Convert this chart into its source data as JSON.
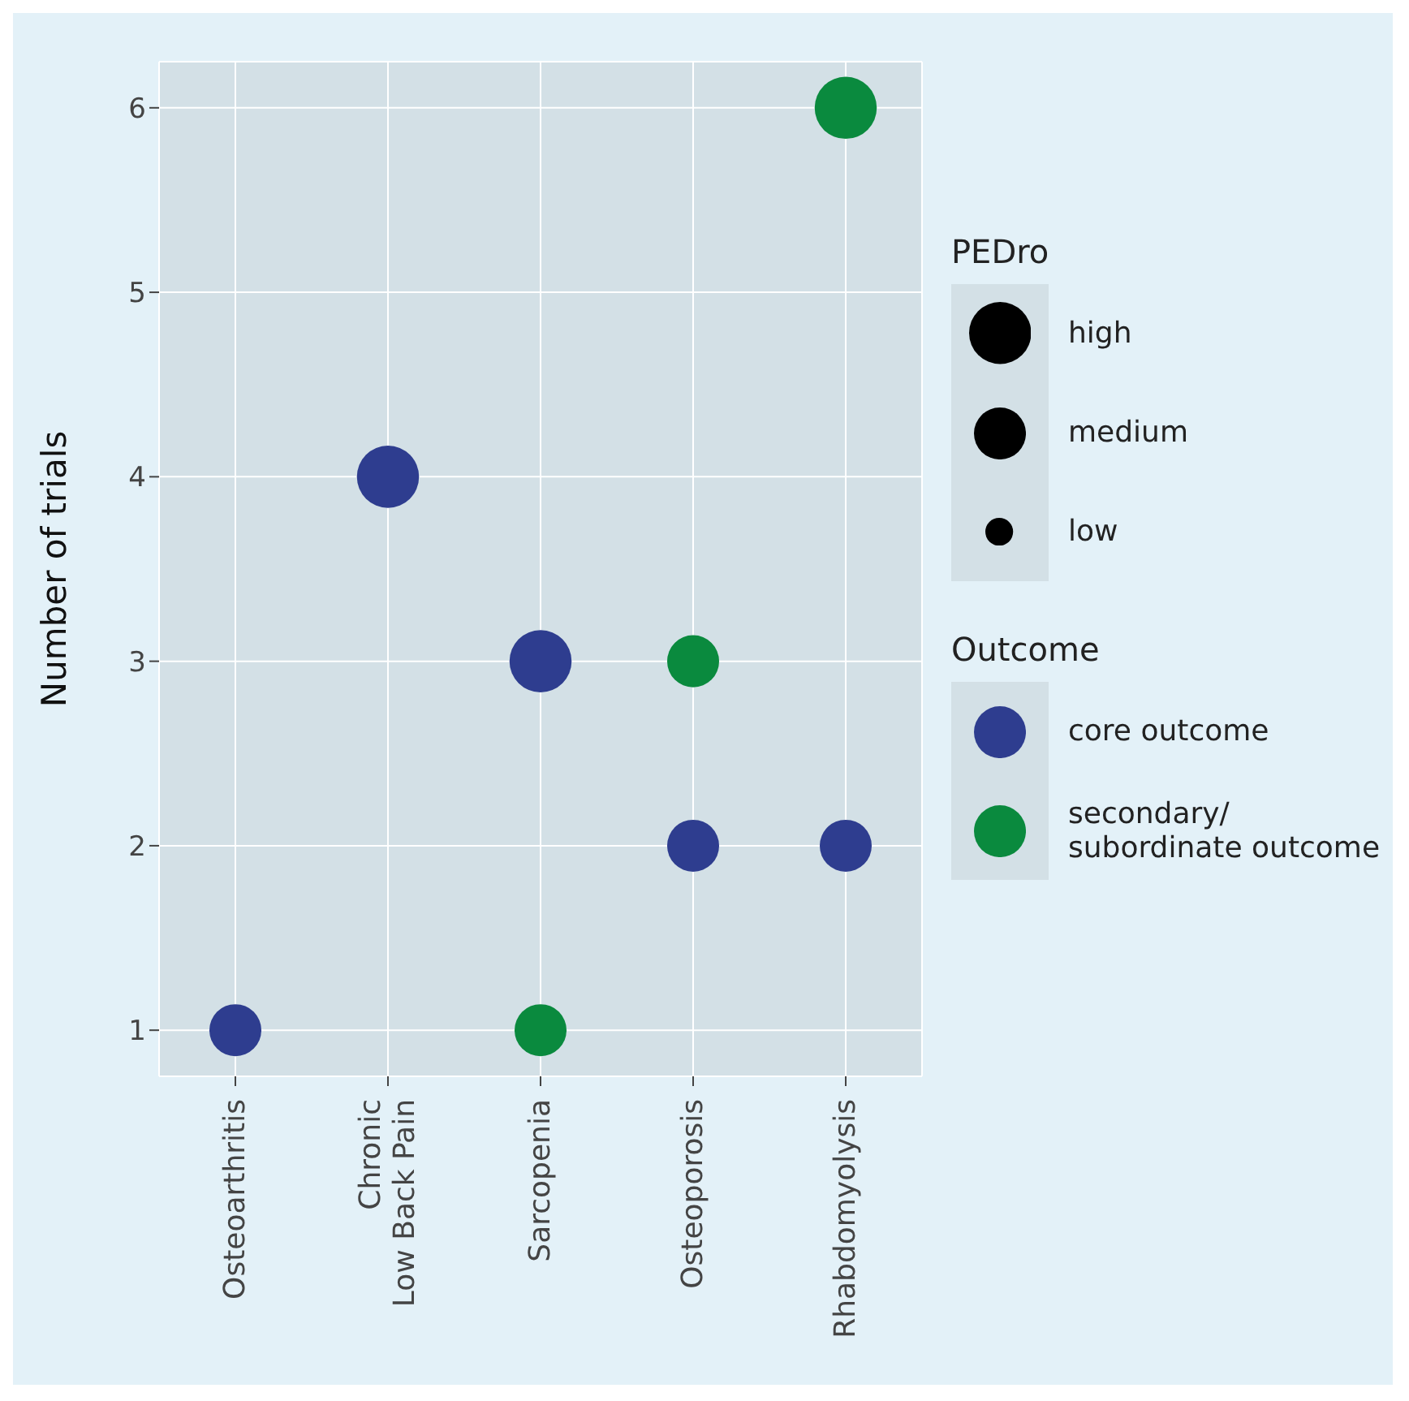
{
  "chart_data": {
    "type": "bubble",
    "ylabel": "Number of trials",
    "categories": [
      "Osteoarthritis",
      "Chronic Low Back Pain",
      "Sarcopenia",
      "Osteoporosis",
      "Rhabdomyolysis"
    ],
    "ylim": [
      0.75,
      6.25
    ],
    "yticks": [
      1,
      2,
      3,
      4,
      5,
      6
    ],
    "grid": true,
    "legend": "right",
    "legend_title": "Outcome",
    "annotations": [
      "PEDro"
    ],
    "size_legend": [
      {
        "value": 1,
        "label": "high"
      },
      {
        "value": 0.7,
        "label": "medium"
      },
      {
        "value": 0.2,
        "label": "low"
      }
    ],
    "series": [
      {
        "name": "core outcome",
        "color": "#2e3d8f",
        "x": [
          "Osteoarthritis",
          "Chronic Low Back Pain",
          "Sarcopenia",
          "Osteoporosis",
          "Rhabdomyolysis"
        ],
        "values": [
          1,
          4,
          3,
          2,
          2
        ],
        "sizes": [
          0.7,
          1,
          1,
          0.7,
          0.7
        ]
      },
      {
        "name": "secondary/ subordinate outcome",
        "color": "#0a8a3e",
        "x": [
          "Sarcopenia",
          "Osteoporosis",
          "Rhabdomyolysis"
        ],
        "values": [
          1,
          3,
          6
        ],
        "sizes": [
          0.7,
          0.7,
          1
        ]
      }
    ]
  }
}
